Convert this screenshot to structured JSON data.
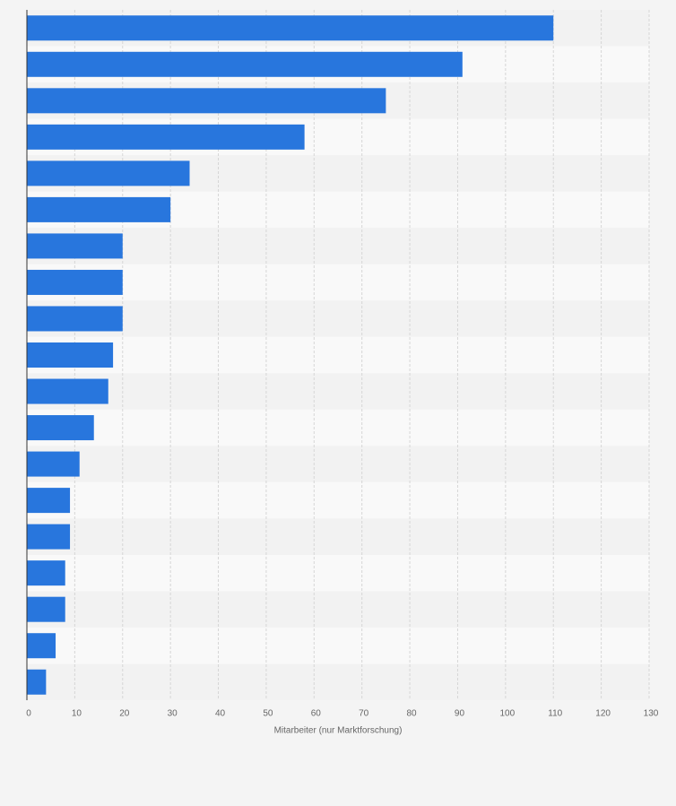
{
  "chart_data": {
    "type": "hbar",
    "categories": [
      null,
      null,
      null,
      null,
      null,
      null,
      null,
      null,
      null,
      null,
      null,
      null,
      null,
      null,
      null,
      null,
      null,
      null,
      null
    ],
    "values": [
      110,
      91,
      75,
      58,
      34,
      30,
      20,
      20,
      20,
      18,
      17,
      14,
      11,
      9,
      9,
      8,
      8,
      6,
      4
    ],
    "color": "#2876dd",
    "xlabel": "Mitarbeiter (nur Marktforschung)",
    "xlim": [
      0,
      130
    ],
    "xticks": [
      0,
      10,
      20,
      30,
      40,
      50,
      60,
      70,
      80,
      90,
      100,
      110,
      120,
      130
    ],
    "grid": true
  }
}
